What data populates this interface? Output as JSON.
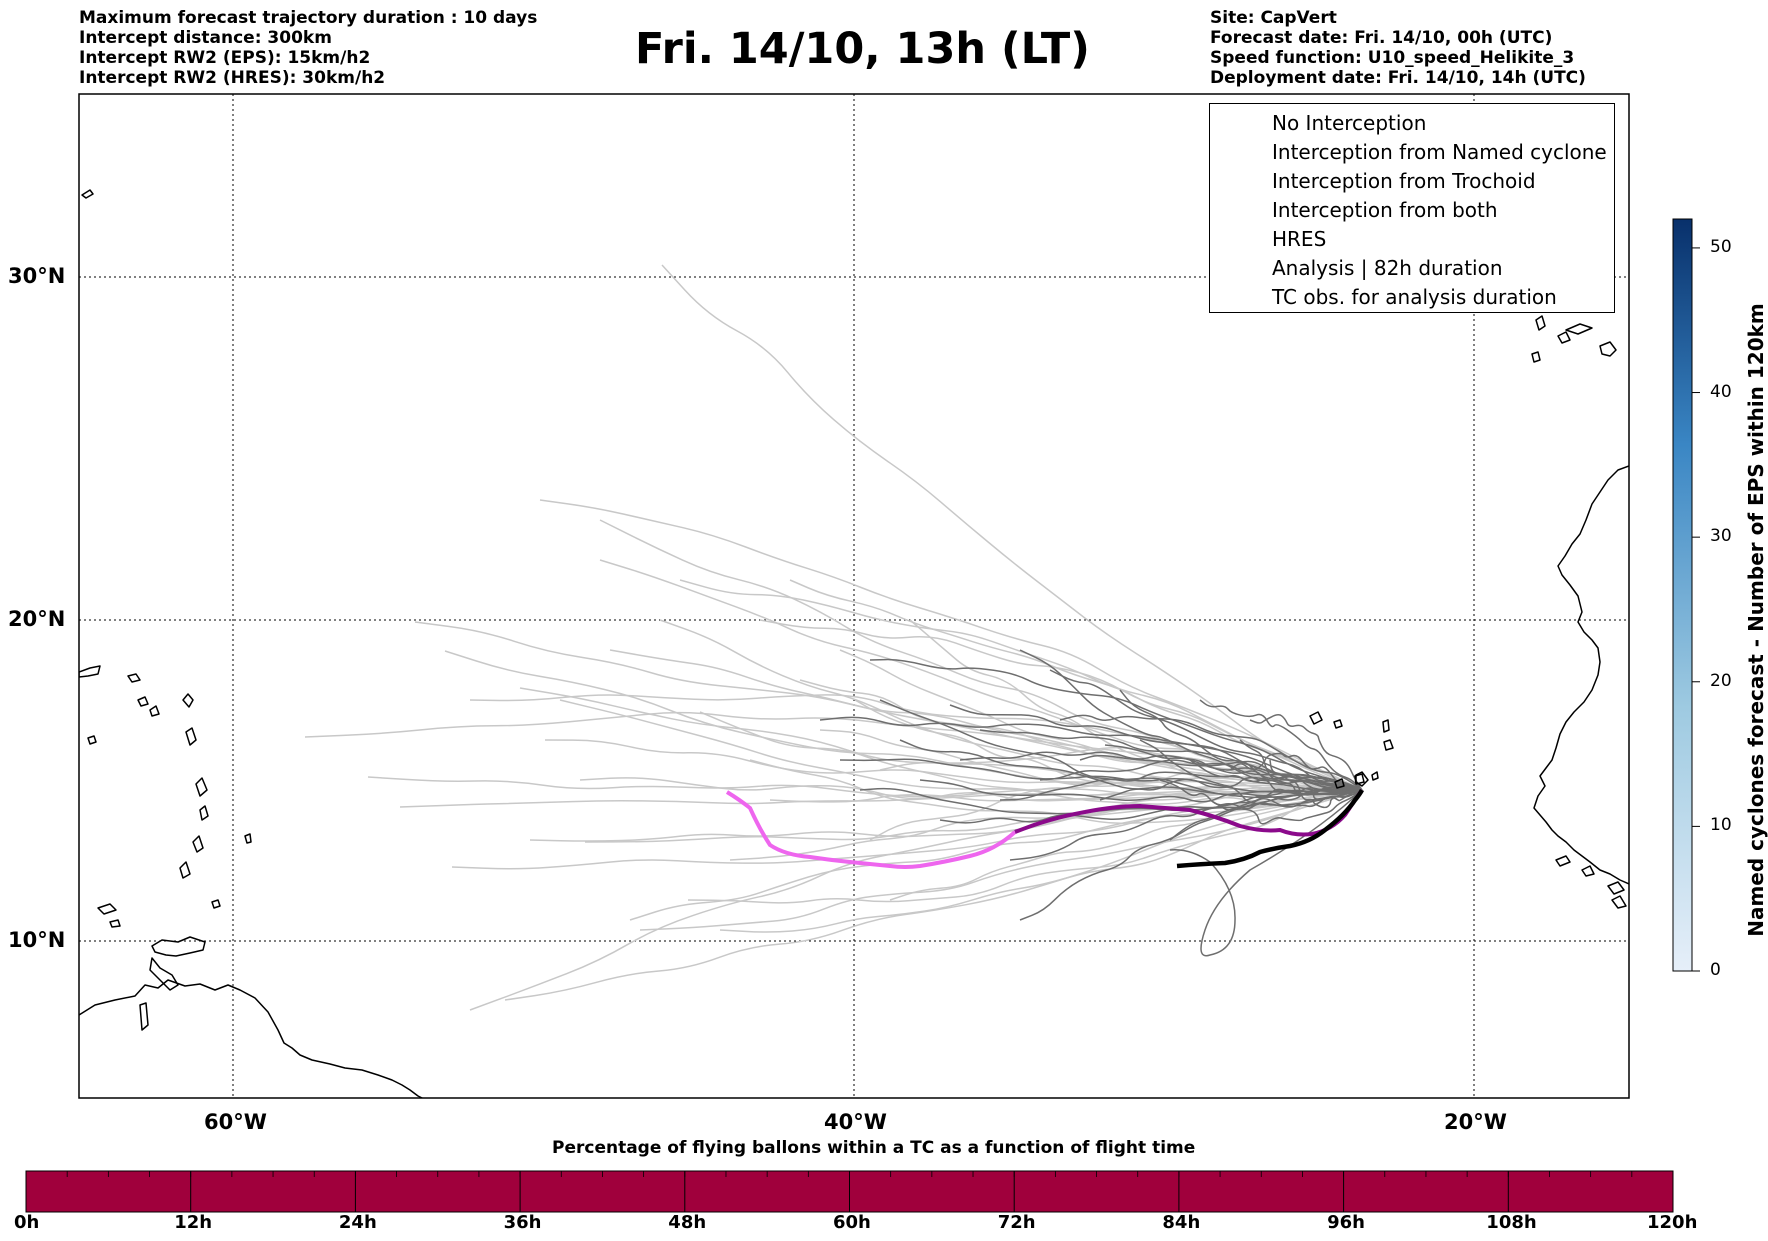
{
  "header": {
    "title": "Fri. 14/10, 13h (LT)",
    "left_info": [
      "Maximum forecast trajectory duration : 10 days",
      "Intercept distance: 300km",
      "Intercept RW2 (EPS):  15km/h2",
      "Intercept RW2 (HRES): 30km/h2"
    ],
    "right_info": [
      "Site: CapVert",
      "Forecast date: Fri. 14/10, 00h (UTC)",
      "Speed function: U10_speed_Helikite_3",
      "Deployment date: Fri. 14/10, 14h (UTC)"
    ]
  },
  "map": {
    "lat_labels": [
      "30°N",
      "20°N",
      "10°N"
    ],
    "lon_labels": [
      "60°W",
      "40°W",
      "20°W"
    ],
    "grid": true,
    "colors": {
      "eps_old": "#c8c8c8",
      "eps_recent": "#6e6e6e",
      "hres_old": "#ee66ee",
      "hres_recent": "#8b0a8b",
      "analysis": "#000000",
      "coast": "#000000"
    }
  },
  "legend": {
    "items": [
      {
        "label": "No Interception",
        "color": "#808080",
        "style": "thin"
      },
      {
        "label": "Interception from Named cyclone",
        "color": "#ff7f50",
        "style": "thin"
      },
      {
        "label": "Interception from Trochoid",
        "color": "#9a8a30",
        "style": "thin"
      },
      {
        "label": "Interception from both",
        "color": "#2ca02c",
        "style": "thin"
      },
      {
        "label": "HRES",
        "color": "#8b0a8b",
        "style": "thick"
      },
      {
        "label": "Analysis | 82h duration",
        "color": "#000000",
        "style": "thick"
      },
      {
        "label": "TC obs. for analysis duration",
        "color": "#000000",
        "style": "symbol"
      }
    ]
  },
  "bottom_colorbar": {
    "title": "Percentage of flying ballons within a TC as a function of flight time",
    "ticks": [
      "0h",
      "12h",
      "24h",
      "36h",
      "48h",
      "60h",
      "72h",
      "84h",
      "96h",
      "108h",
      "120h"
    ],
    "fill_color": "#a0003c"
  },
  "side_colorbar": {
    "label": "Named cyclones forecast - Number of EPS within 120km",
    "ticks": [
      "0",
      "10",
      "20",
      "30",
      "40",
      "50"
    ],
    "min": 0,
    "max": 52,
    "color_low": "#e6eff9",
    "color_high": "#08306b"
  }
}
